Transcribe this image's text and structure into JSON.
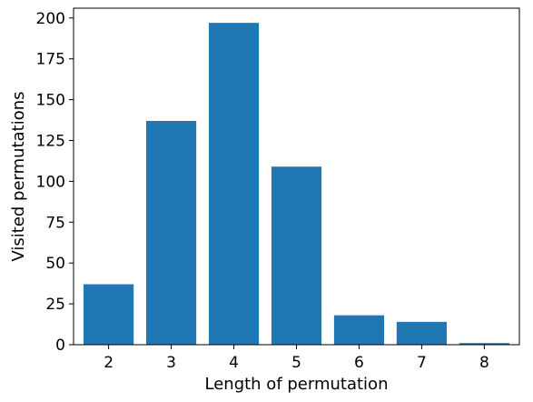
{
  "chart_data": {
    "type": "bar",
    "categories": [
      "2",
      "3",
      "4",
      "5",
      "6",
      "7",
      "8"
    ],
    "values": [
      37,
      137,
      197,
      109,
      18,
      14,
      1
    ],
    "title": "",
    "xlabel": "Length of permutation",
    "ylabel": "Visited permutations",
    "ylim": [
      0,
      206
    ],
    "yticks": [
      "0",
      "25",
      "50",
      "75",
      "100",
      "125",
      "150",
      "175",
      "200"
    ],
    "grid": false,
    "bar_color": "#1f77b4"
  }
}
